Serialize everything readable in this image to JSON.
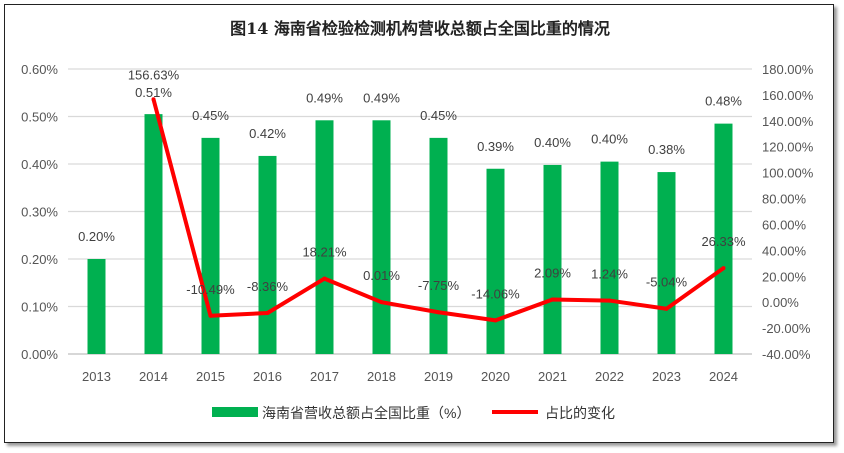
{
  "chart_data": {
    "type": "bar+line",
    "title": "图14 海南省检验检测机构营收总额占全国比重的情况",
    "categories": [
      "2013",
      "2014",
      "2015",
      "2016",
      "2017",
      "2018",
      "2019",
      "2020",
      "2021",
      "2022",
      "2023",
      "2024"
    ],
    "series": [
      {
        "name": "海南省营收总额占全国比重（%）",
        "type": "bar",
        "axis": "left",
        "color": "#00b050",
        "values": [
          0.2,
          0.505,
          0.455,
          0.417,
          0.492,
          0.492,
          0.455,
          0.39,
          0.398,
          0.405,
          0.383,
          0.485
        ],
        "labels": [
          "0.20%",
          "0.51%",
          "0.45%",
          "0.42%",
          "0.49%",
          "0.49%",
          "0.45%",
          "0.39%",
          "0.40%",
          "0.40%",
          "0.38%",
          "0.48%"
        ]
      },
      {
        "name": "占比的变化",
        "type": "line",
        "axis": "right",
        "color": "#ff0000",
        "values": [
          null,
          156.63,
          -10.49,
          -8.36,
          18.21,
          0.01,
          -7.75,
          -14.06,
          2.09,
          1.24,
          -5.04,
          26.33
        ],
        "labels": [
          "",
          "156.63%",
          "-10.49%",
          "-8.36%",
          "18.21%",
          "0.01%",
          "-7.75%",
          "-14.06%",
          "2.09%",
          "1.24%",
          "-5.04%",
          "26.33%"
        ]
      }
    ],
    "left_axis": {
      "ylim": [
        0,
        0.6
      ],
      "ticks": [
        "0.00%",
        "0.10%",
        "0.20%",
        "0.30%",
        "0.40%",
        "0.50%",
        "0.60%"
      ]
    },
    "right_axis": {
      "ylim": [
        -40,
        180
      ],
      "ticks": [
        "-40.00%",
        "-20.00%",
        "0.00%",
        "20.00%",
        "40.00%",
        "60.00%",
        "80.00%",
        "100.00%",
        "120.00%",
        "140.00%",
        "160.00%",
        "180.00%"
      ]
    },
    "grid": true,
    "legend": "bottom"
  }
}
